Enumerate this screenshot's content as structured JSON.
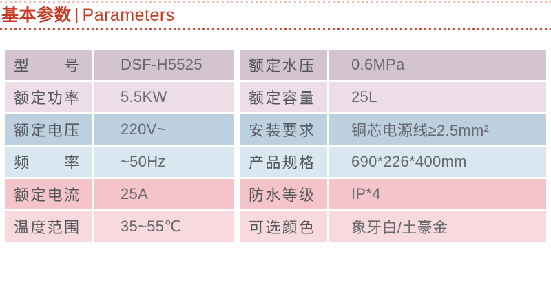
{
  "header": {
    "title_zh": "基本参数",
    "divider": "|",
    "title_en": "Parameters",
    "text_color": "#c93a26",
    "top_rule_color": "#f2bcb2",
    "bottom_rule_color": "#d7463a"
  },
  "table": {
    "label_color": "#54575b",
    "value_color": "#67696e",
    "rows": [
      {
        "bg": "#d4c4cf",
        "left_label": "型 号",
        "left_value": "DSF-H5525",
        "right_label": "额定水压",
        "right_value": "0.6MPa"
      },
      {
        "bg": "#ecdde7",
        "left_label": "额定功率",
        "left_value": "5.5KW",
        "right_label": "额定容量",
        "right_value": "25L"
      },
      {
        "bg": "#bdd0e0",
        "left_label": "额定电压",
        "left_value": "220V~",
        "right_label": "安装要求",
        "right_value": "铜芯电源线≥2.5mm²"
      },
      {
        "bg": "#d9e7f1",
        "left_label": "频 率",
        "left_value": "~50Hz",
        "right_label": "产品规格",
        "right_value": "690*226*400mm"
      },
      {
        "bg": "#f4c4ca",
        "left_label": "额定电流",
        "left_value": "25A",
        "right_label": "防水等级",
        "right_value": "IP*4"
      },
      {
        "bg": "#f8dade",
        "left_label": "温度范围",
        "left_value": "35~55℃",
        "right_label": "可选颜色",
        "right_value": "象牙白/土豪金"
      }
    ]
  }
}
